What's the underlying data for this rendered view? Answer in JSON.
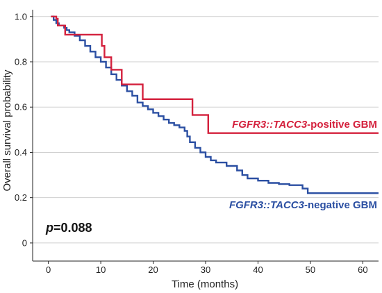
{
  "chart_data": {
    "type": "line",
    "xlabel": "Time (months)",
    "ylabel": "Overall survival probability",
    "xlim": [
      -3,
      63
    ],
    "ylim": [
      -0.08,
      1.03
    ],
    "x_ticks": [
      0,
      10,
      20,
      30,
      40,
      50,
      60
    ],
    "y_ticks": [
      0,
      0.2,
      0.4,
      0.6,
      0.8,
      1.0
    ],
    "y_tick_labels": [
      "0",
      "0.2",
      "0.4",
      "0.6",
      "0.8",
      "1.0"
    ],
    "grid": "horizontal",
    "annotation": {
      "italic": "p",
      "value": "=0.088"
    },
    "series": [
      {
        "label_italic": "FGFR3::TACC3",
        "label_suffix": "-positive GBM",
        "color": "#d4213d",
        "step": true,
        "points": [
          [
            0.5,
            1.0
          ],
          [
            1.5,
            0.99
          ],
          [
            1.8,
            0.96
          ],
          [
            3.2,
            0.92
          ],
          [
            10.2,
            0.87
          ],
          [
            10.7,
            0.82
          ],
          [
            12.0,
            0.765
          ],
          [
            14.0,
            0.7
          ],
          [
            18.0,
            0.635
          ],
          [
            27.5,
            0.565
          ],
          [
            30.5,
            0.485
          ],
          [
            63,
            0.485
          ]
        ]
      },
      {
        "label_italic": "FGFR3::TACC3",
        "label_suffix": "-negative GBM",
        "color": "#2b4fa2",
        "step": true,
        "points": [
          [
            0.5,
            1.0
          ],
          [
            1.0,
            0.985
          ],
          [
            1.5,
            0.97
          ],
          [
            2.0,
            0.96
          ],
          [
            3.0,
            0.95
          ],
          [
            3.5,
            0.94
          ],
          [
            4.0,
            0.93
          ],
          [
            5.0,
            0.915
          ],
          [
            6.0,
            0.895
          ],
          [
            7.0,
            0.87
          ],
          [
            8.0,
            0.845
          ],
          [
            9.0,
            0.82
          ],
          [
            10.0,
            0.8
          ],
          [
            11.0,
            0.775
          ],
          [
            12.0,
            0.745
          ],
          [
            13.0,
            0.72
          ],
          [
            14.0,
            0.695
          ],
          [
            15.0,
            0.67
          ],
          [
            16.0,
            0.65
          ],
          [
            17.0,
            0.62
          ],
          [
            18.0,
            0.605
          ],
          [
            19.0,
            0.59
          ],
          [
            20.0,
            0.575
          ],
          [
            21.0,
            0.56
          ],
          [
            22.0,
            0.545
          ],
          [
            23.0,
            0.53
          ],
          [
            24.0,
            0.52
          ],
          [
            25.0,
            0.51
          ],
          [
            26.0,
            0.495
          ],
          [
            26.5,
            0.47
          ],
          [
            27.0,
            0.445
          ],
          [
            28.0,
            0.42
          ],
          [
            29.0,
            0.4
          ],
          [
            30.0,
            0.38
          ],
          [
            31.0,
            0.365
          ],
          [
            32.0,
            0.355
          ],
          [
            34.0,
            0.34
          ],
          [
            36.0,
            0.32
          ],
          [
            37.0,
            0.3
          ],
          [
            38.0,
            0.285
          ],
          [
            40.0,
            0.275
          ],
          [
            42.0,
            0.265
          ],
          [
            44.0,
            0.26
          ],
          [
            46.0,
            0.255
          ],
          [
            48.5,
            0.24
          ],
          [
            49.5,
            0.22
          ],
          [
            63,
            0.22
          ]
        ]
      }
    ]
  }
}
